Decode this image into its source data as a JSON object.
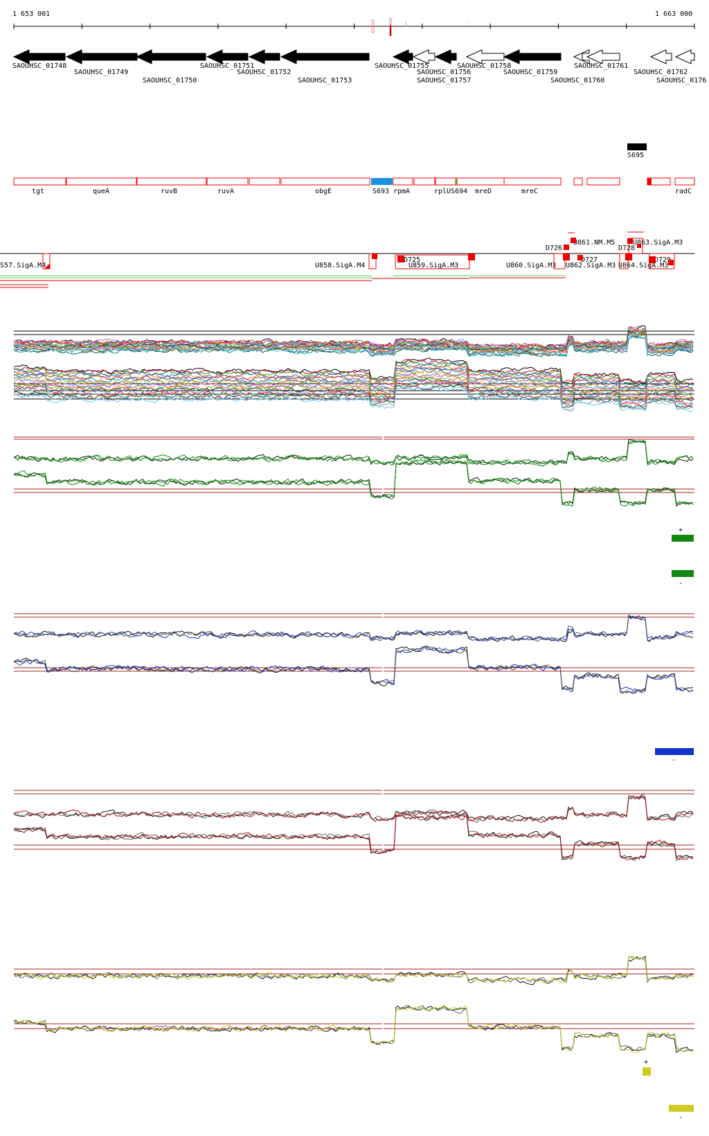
{
  "ruler": {
    "start_label": "1 653 001",
    "end_label": "1 663 000"
  },
  "genes": [
    {
      "name": "SAOUHSC_01748",
      "filled": true,
      "strand": "-"
    },
    {
      "name": "SAOUHSC_01749",
      "filled": true,
      "strand": "-"
    },
    {
      "name": "SAOUHSC_01750",
      "filled": true,
      "strand": "-"
    },
    {
      "name": "SAOUHSC_01751",
      "filled": true,
      "strand": "-"
    },
    {
      "name": "SAOUHSC_01752",
      "filled": true,
      "strand": "-"
    },
    {
      "name": "SAOUHSC_01753",
      "filled": true,
      "strand": "-"
    },
    {
      "name": "SAOUHSC_01755",
      "filled": true,
      "strand": "-"
    },
    {
      "name": "SAOUHSC_01756",
      "filled": false,
      "strand": "-"
    },
    {
      "name": "SAOUHSC_01757",
      "filled": true,
      "strand": "-"
    },
    {
      "name": "SAOUHSC_01758",
      "filled": false,
      "strand": "-"
    },
    {
      "name": "SAOUHSC_01759",
      "filled": true,
      "strand": "-"
    },
    {
      "name": "SAOUHSC_01760",
      "filled": false,
      "strand": "-"
    },
    {
      "name": "SAOUHSC_01761",
      "filled": false,
      "strand": "-"
    },
    {
      "name": "SAOUHSC_01762",
      "filled": false,
      "strand": "-"
    },
    {
      "name": "SAOUHSC_0176",
      "filled": false,
      "strand": "-"
    }
  ],
  "segments": {
    "s695": "S695",
    "labels": [
      "tgt",
      "queA",
      "ruvB",
      "ruvA",
      "obgE",
      "S693",
      "rpmA",
      "rplUS694",
      "mreD",
      "mreC",
      "radC"
    ]
  },
  "transcripts": {
    "left": "S57.SigA.M4",
    "labels": [
      "U858.SigA.M4",
      "D725",
      "U859.SigA.M3",
      "U860.SigA.M3",
      "D726",
      "U861.NM.M5",
      "U862.SigA.M3",
      "D727",
      "D728",
      "U863.SigA.M3",
      "U864.SigA.M3",
      "D729"
    ]
  },
  "legends": {
    "green": {
      "plus": "+",
      "minus": "-"
    },
    "blue": {
      "minus": "-"
    },
    "yellow": {
      "plus": "+",
      "minus": "-"
    }
  },
  "colors": {
    "gene_fill": "#000000",
    "segment_outline": "#ff0000",
    "segment_blue": "#1a8fe0",
    "segment_green": "#22dd22",
    "track_green": "#118811",
    "track_blue": "#1133cc",
    "track_red": "#aa1111",
    "track_yellow": "#cccc22",
    "threshold": "#aa2222"
  }
}
